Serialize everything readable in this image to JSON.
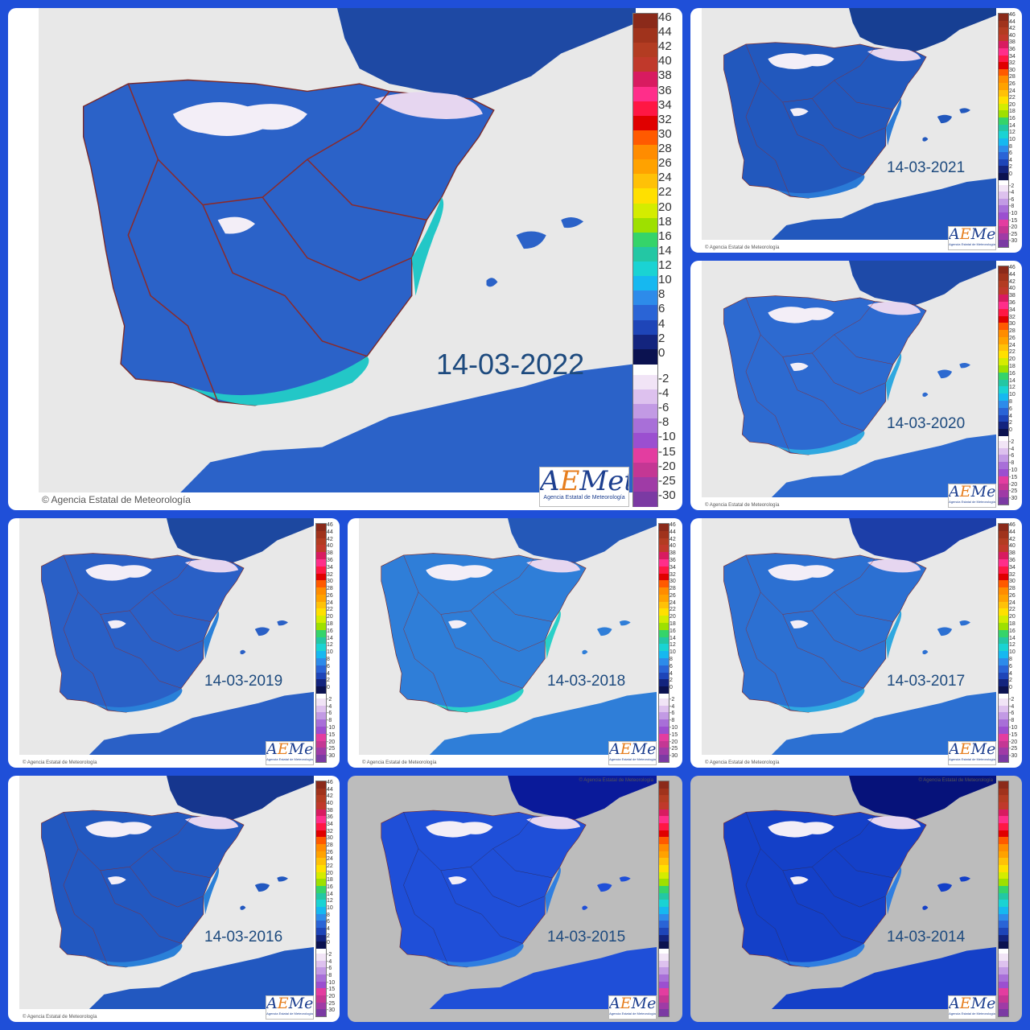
{
  "collage": {
    "background": "#1f4fd8",
    "scale_ticks": [
      "46",
      "44",
      "42",
      "40",
      "38",
      "36",
      "34",
      "32",
      "30",
      "28",
      "26",
      "24",
      "22",
      "20",
      "18",
      "16",
      "14",
      "12",
      "10",
      "8",
      "6",
      "4",
      "2",
      "0",
      "-2",
      "-4",
      "-6",
      "-8",
      "-10",
      "-15",
      "-20",
      "-25",
      "-30"
    ],
    "scale_colors": [
      "#8b2a1a",
      "#a0331c",
      "#b33c22",
      "#c0392b",
      "#d81b60",
      "#ff2e8a",
      "#ff1744",
      "#e00000",
      "#ff5a00",
      "#ff8c00",
      "#ffa200",
      "#ffc107",
      "#ffe000",
      "#d4ec00",
      "#9ee000",
      "#35d46a",
      "#23c7a4",
      "#1ad3d3",
      "#16b8f0",
      "#2d8bea",
      "#2a64d6",
      "#1e45b8",
      "#13247e",
      "#0b1250",
      "#f1e4f6",
      "#ddc1ee",
      "#c29ae4",
      "#a86fd8",
      "#9b4fd0",
      "#e33da0",
      "#c43794",
      "#9f3ba6",
      "#7b3aa3"
    ],
    "credit_text": "© Agencia Estatal de Meteorología",
    "logo": {
      "word_a": "A",
      "word_e": "E",
      "word_rest": "Met",
      "subtitle": "Agencia Estatal de Meteorología"
    },
    "panels": [
      {
        "date": "14-03-2022",
        "style": "modern",
        "sea": "#e8e8e8",
        "land": "#2b62c8",
        "land_dark": "#1e49a4",
        "coast": "#23c7c7"
      },
      {
        "date": "14-03-2021",
        "style": "modern",
        "sea": "#e8e8e8",
        "land": "#2258bd",
        "land_dark": "#173f93",
        "coast": "#2a7ad6"
      },
      {
        "date": "14-03-2020",
        "style": "modern",
        "sea": "#e8e8e8",
        "land": "#2d6ad0",
        "land_dark": "#1e4aa8",
        "coast": "#2fa8e0"
      },
      {
        "date": "14-03-2019",
        "style": "modern",
        "sea": "#e8e8e8",
        "land": "#2a60c6",
        "land_dark": "#1d48a0",
        "coast": "#2a80d8"
      },
      {
        "date": "14-03-2018",
        "style": "modern",
        "sea": "#e8e8e8",
        "land": "#2f7ed8",
        "land_dark": "#2458b8",
        "coast": "#2ad0c8"
      },
      {
        "date": "14-03-2017",
        "style": "modern",
        "sea": "#e8e8e8",
        "land": "#2c70d2",
        "land_dark": "#1c3ea8",
        "coast": "#2fa8e0"
      },
      {
        "date": "14-03-2016",
        "style": "modern",
        "sea": "#e8e8e8",
        "land": "#2258c0",
        "land_dark": "#16368e",
        "coast": "#2a80d8"
      },
      {
        "date": "14-03-2015",
        "style": "legacy",
        "sea": "#bcbcbc",
        "land": "#1f4fd8",
        "land_dark": "#0a1a9a",
        "coast": "#2f7ee0"
      },
      {
        "date": "14-03-2014",
        "style": "legacy",
        "sea": "#bcbcbc",
        "land": "#1440c8",
        "land_dark": "#06127a",
        "coast": "#2f7ee0"
      }
    ]
  }
}
